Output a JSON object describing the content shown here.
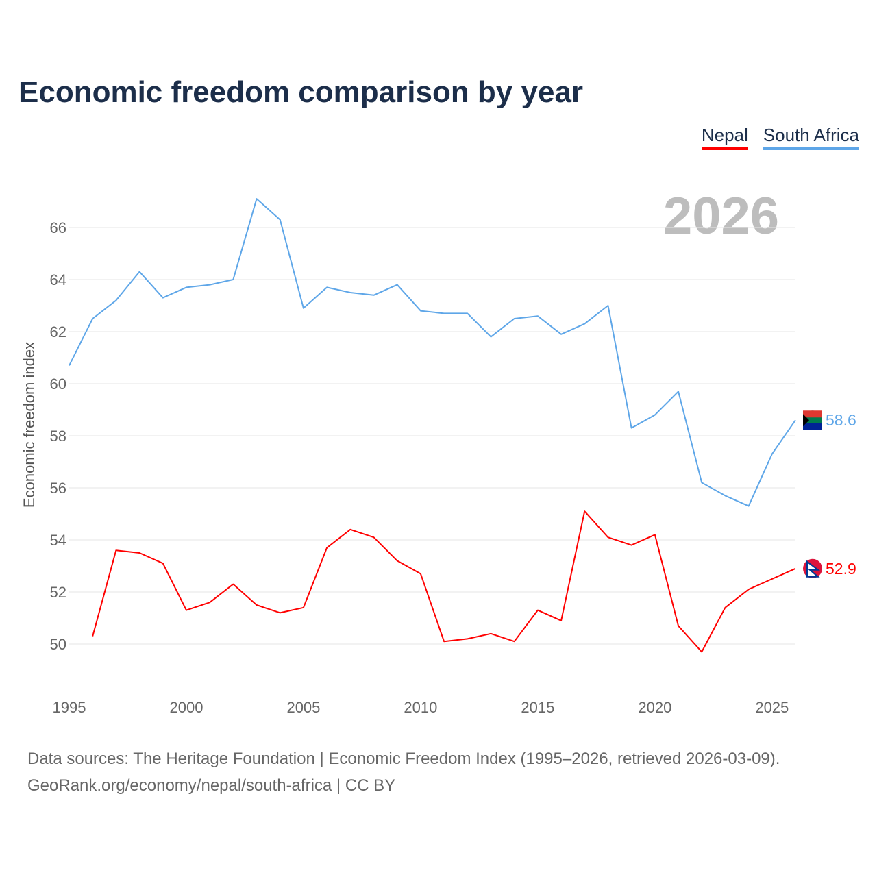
{
  "chart_data": {
    "type": "line",
    "title": "Economic freedom comparison by year",
    "year_label": "2026",
    "ylabel": "Economic freedom index",
    "xlabel": "",
    "xlim": [
      1995,
      2026
    ],
    "ylim": [
      48.5,
      67.5
    ],
    "y_ticks": [
      50,
      52,
      54,
      56,
      58,
      60,
      62,
      64,
      66
    ],
    "x_ticks": [
      1995,
      2000,
      2005,
      2010,
      2015,
      2020,
      2025
    ],
    "grid": true,
    "legend_position": "top-right",
    "series": [
      {
        "name": "Nepal",
        "color": "#ff0000",
        "end_label": "52.9",
        "x": [
          1996,
          1997,
          1998,
          1999,
          2000,
          2001,
          2002,
          2003,
          2004,
          2005,
          2006,
          2007,
          2008,
          2009,
          2010,
          2011,
          2012,
          2013,
          2014,
          2015,
          2016,
          2017,
          2018,
          2019,
          2020,
          2021,
          2022,
          2023,
          2024,
          2025,
          2026
        ],
        "values": [
          50.3,
          53.6,
          53.5,
          53.1,
          51.3,
          51.6,
          52.3,
          51.5,
          51.2,
          51.4,
          53.7,
          54.4,
          54.1,
          53.2,
          52.7,
          50.1,
          50.2,
          50.4,
          50.1,
          51.3,
          50.9,
          55.1,
          54.1,
          53.8,
          54.2,
          50.7,
          49.7,
          51.4,
          52.1,
          52.5,
          52.9
        ]
      },
      {
        "name": "South Africa",
        "color": "#5ea6e8",
        "end_label": "58.6",
        "x": [
          1995,
          1996,
          1997,
          1998,
          1999,
          2000,
          2001,
          2002,
          2003,
          2004,
          2005,
          2006,
          2007,
          2008,
          2009,
          2010,
          2011,
          2012,
          2013,
          2014,
          2015,
          2016,
          2017,
          2018,
          2019,
          2020,
          2021,
          2022,
          2023,
          2024,
          2025,
          2026
        ],
        "values": [
          60.7,
          62.5,
          63.2,
          64.3,
          63.3,
          63.7,
          63.8,
          64.0,
          67.1,
          66.3,
          62.9,
          63.7,
          63.5,
          63.4,
          63.8,
          62.8,
          62.7,
          62.7,
          61.8,
          62.5,
          62.6,
          61.9,
          62.3,
          63.0,
          58.3,
          58.8,
          59.7,
          56.2,
          55.7,
          55.3,
          57.3,
          58.6
        ]
      }
    ]
  },
  "source": {
    "line1": "Data sources: The Heritage Foundation | Economic Freedom Index (1995–2026, retrieved 2026-03-09).",
    "line2": "GeoRank.org/economy/nepal/south-africa | CC BY"
  }
}
